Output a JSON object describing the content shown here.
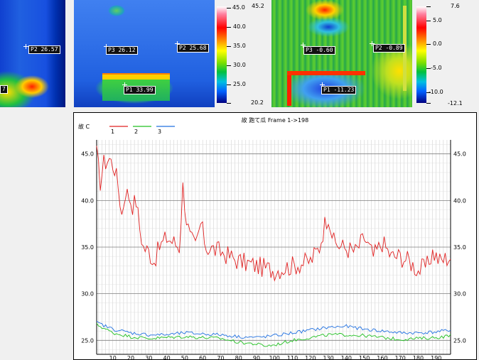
{
  "thermal_images": {
    "left": {
      "spots": [
        {
          "label": "P2 26.57"
        },
        {
          "label": "7"
        }
      ]
    },
    "middle": {
      "spots": [
        {
          "label": "P3 26.12"
        },
        {
          "label": "P2 25.68"
        },
        {
          "label": "P1 33.99"
        }
      ],
      "scale": {
        "max": "45.0",
        "max_alt": "45.2",
        "ticks": [
          "40.0",
          "35.0",
          "30.0",
          "25.0"
        ],
        "min": "20.2"
      }
    },
    "right": {
      "spots": [
        {
          "label": "P3 -0.60"
        },
        {
          "label": "P2 -0.89"
        },
        {
          "label": "P1 -11.23"
        }
      ],
      "scale": {
        "max": "7.6",
        "ticks": [
          "5.0",
          "0.0",
          "-5.0",
          "-10.0"
        ],
        "min": "-12.1"
      }
    }
  },
  "chart_data": {
    "type": "line",
    "title": "故 跑て瓜 Frame 1->198",
    "ylabel": "故 C",
    "xlim": [
      1,
      198
    ],
    "ylim": [
      23.5,
      46.5
    ],
    "y_ticks": [
      25.0,
      30.0,
      35.0,
      40.0,
      45.0
    ],
    "y_tick_labels": [
      "25.0",
      "30.0",
      "35.0",
      "40.0",
      "45.0"
    ],
    "x_ticks": [
      10,
      20,
      30,
      40,
      50,
      60,
      70,
      80,
      90,
      100,
      110,
      120,
      130,
      140,
      150,
      160,
      170,
      180,
      190
    ],
    "grid": true,
    "legend_position": "top-left",
    "series": [
      {
        "name": "1",
        "color": "#e02020",
        "anchors": [
          [
            1,
            45.0
          ],
          [
            3,
            42.0
          ],
          [
            5,
            44.0
          ],
          [
            8,
            44.5
          ],
          [
            11,
            43.5
          ],
          [
            13,
            41.5
          ],
          [
            15,
            38.5
          ],
          [
            17,
            41.0
          ],
          [
            19,
            40.5
          ],
          [
            21,
            39.5
          ],
          [
            23,
            40.0
          ],
          [
            25,
            37.0
          ],
          [
            27,
            35.0
          ],
          [
            30,
            34.5
          ],
          [
            33,
            33.5
          ],
          [
            36,
            35.0
          ],
          [
            40,
            36.0
          ],
          [
            44,
            35.5
          ],
          [
            47,
            35.0
          ],
          [
            49,
            41.5
          ],
          [
            51,
            38.0
          ],
          [
            53,
            36.0
          ],
          [
            56,
            35.0
          ],
          [
            59,
            37.5
          ],
          [
            62,
            35.0
          ],
          [
            70,
            34.5
          ],
          [
            80,
            33.5
          ],
          [
            90,
            33.0
          ],
          [
            100,
            32.5
          ],
          [
            110,
            33.0
          ],
          [
            120,
            33.5
          ],
          [
            125,
            35.0
          ],
          [
            128,
            37.5
          ],
          [
            130,
            38.5
          ],
          [
            133,
            35.5
          ],
          [
            138,
            35.0
          ],
          [
            145,
            34.5
          ],
          [
            150,
            36.0
          ],
          [
            155,
            34.0
          ],
          [
            160,
            35.5
          ],
          [
            165,
            34.0
          ],
          [
            170,
            34.0
          ],
          [
            175,
            33.5
          ],
          [
            180,
            32.5
          ],
          [
            185,
            33.0
          ],
          [
            188,
            34.5
          ],
          [
            192,
            33.5
          ],
          [
            198,
            34.0
          ]
        ]
      },
      {
        "name": "2",
        "color": "#20c020",
        "anchors": [
          [
            1,
            26.7
          ],
          [
            5,
            26.3
          ],
          [
            10,
            25.8
          ],
          [
            20,
            25.4
          ],
          [
            30,
            25.2
          ],
          [
            40,
            25.3
          ],
          [
            50,
            25.4
          ],
          [
            60,
            25.3
          ],
          [
            70,
            25.2
          ],
          [
            80,
            24.8
          ],
          [
            90,
            24.6
          ],
          [
            95,
            24.4
          ],
          [
            100,
            24.5
          ],
          [
            110,
            25.0
          ],
          [
            120,
            25.3
          ],
          [
            130,
            25.6
          ],
          [
            140,
            25.6
          ],
          [
            150,
            25.5
          ],
          [
            160,
            25.3
          ],
          [
            170,
            25.1
          ],
          [
            180,
            25.2
          ],
          [
            190,
            25.3
          ],
          [
            198,
            25.5
          ]
        ]
      },
      {
        "name": "3",
        "color": "#2070e0",
        "anchors": [
          [
            1,
            26.9
          ],
          [
            5,
            26.6
          ],
          [
            10,
            26.2
          ],
          [
            20,
            25.8
          ],
          [
            30,
            25.6
          ],
          [
            40,
            25.6
          ],
          [
            50,
            25.8
          ],
          [
            60,
            25.7
          ],
          [
            70,
            25.6
          ],
          [
            80,
            25.4
          ],
          [
            90,
            25.3
          ],
          [
            100,
            25.5
          ],
          [
            110,
            25.8
          ],
          [
            120,
            26.1
          ],
          [
            130,
            26.4
          ],
          [
            140,
            26.5
          ],
          [
            150,
            26.2
          ],
          [
            160,
            26.0
          ],
          [
            170,
            25.8
          ],
          [
            180,
            25.8
          ],
          [
            190,
            25.9
          ],
          [
            198,
            26.1
          ]
        ]
      }
    ]
  }
}
